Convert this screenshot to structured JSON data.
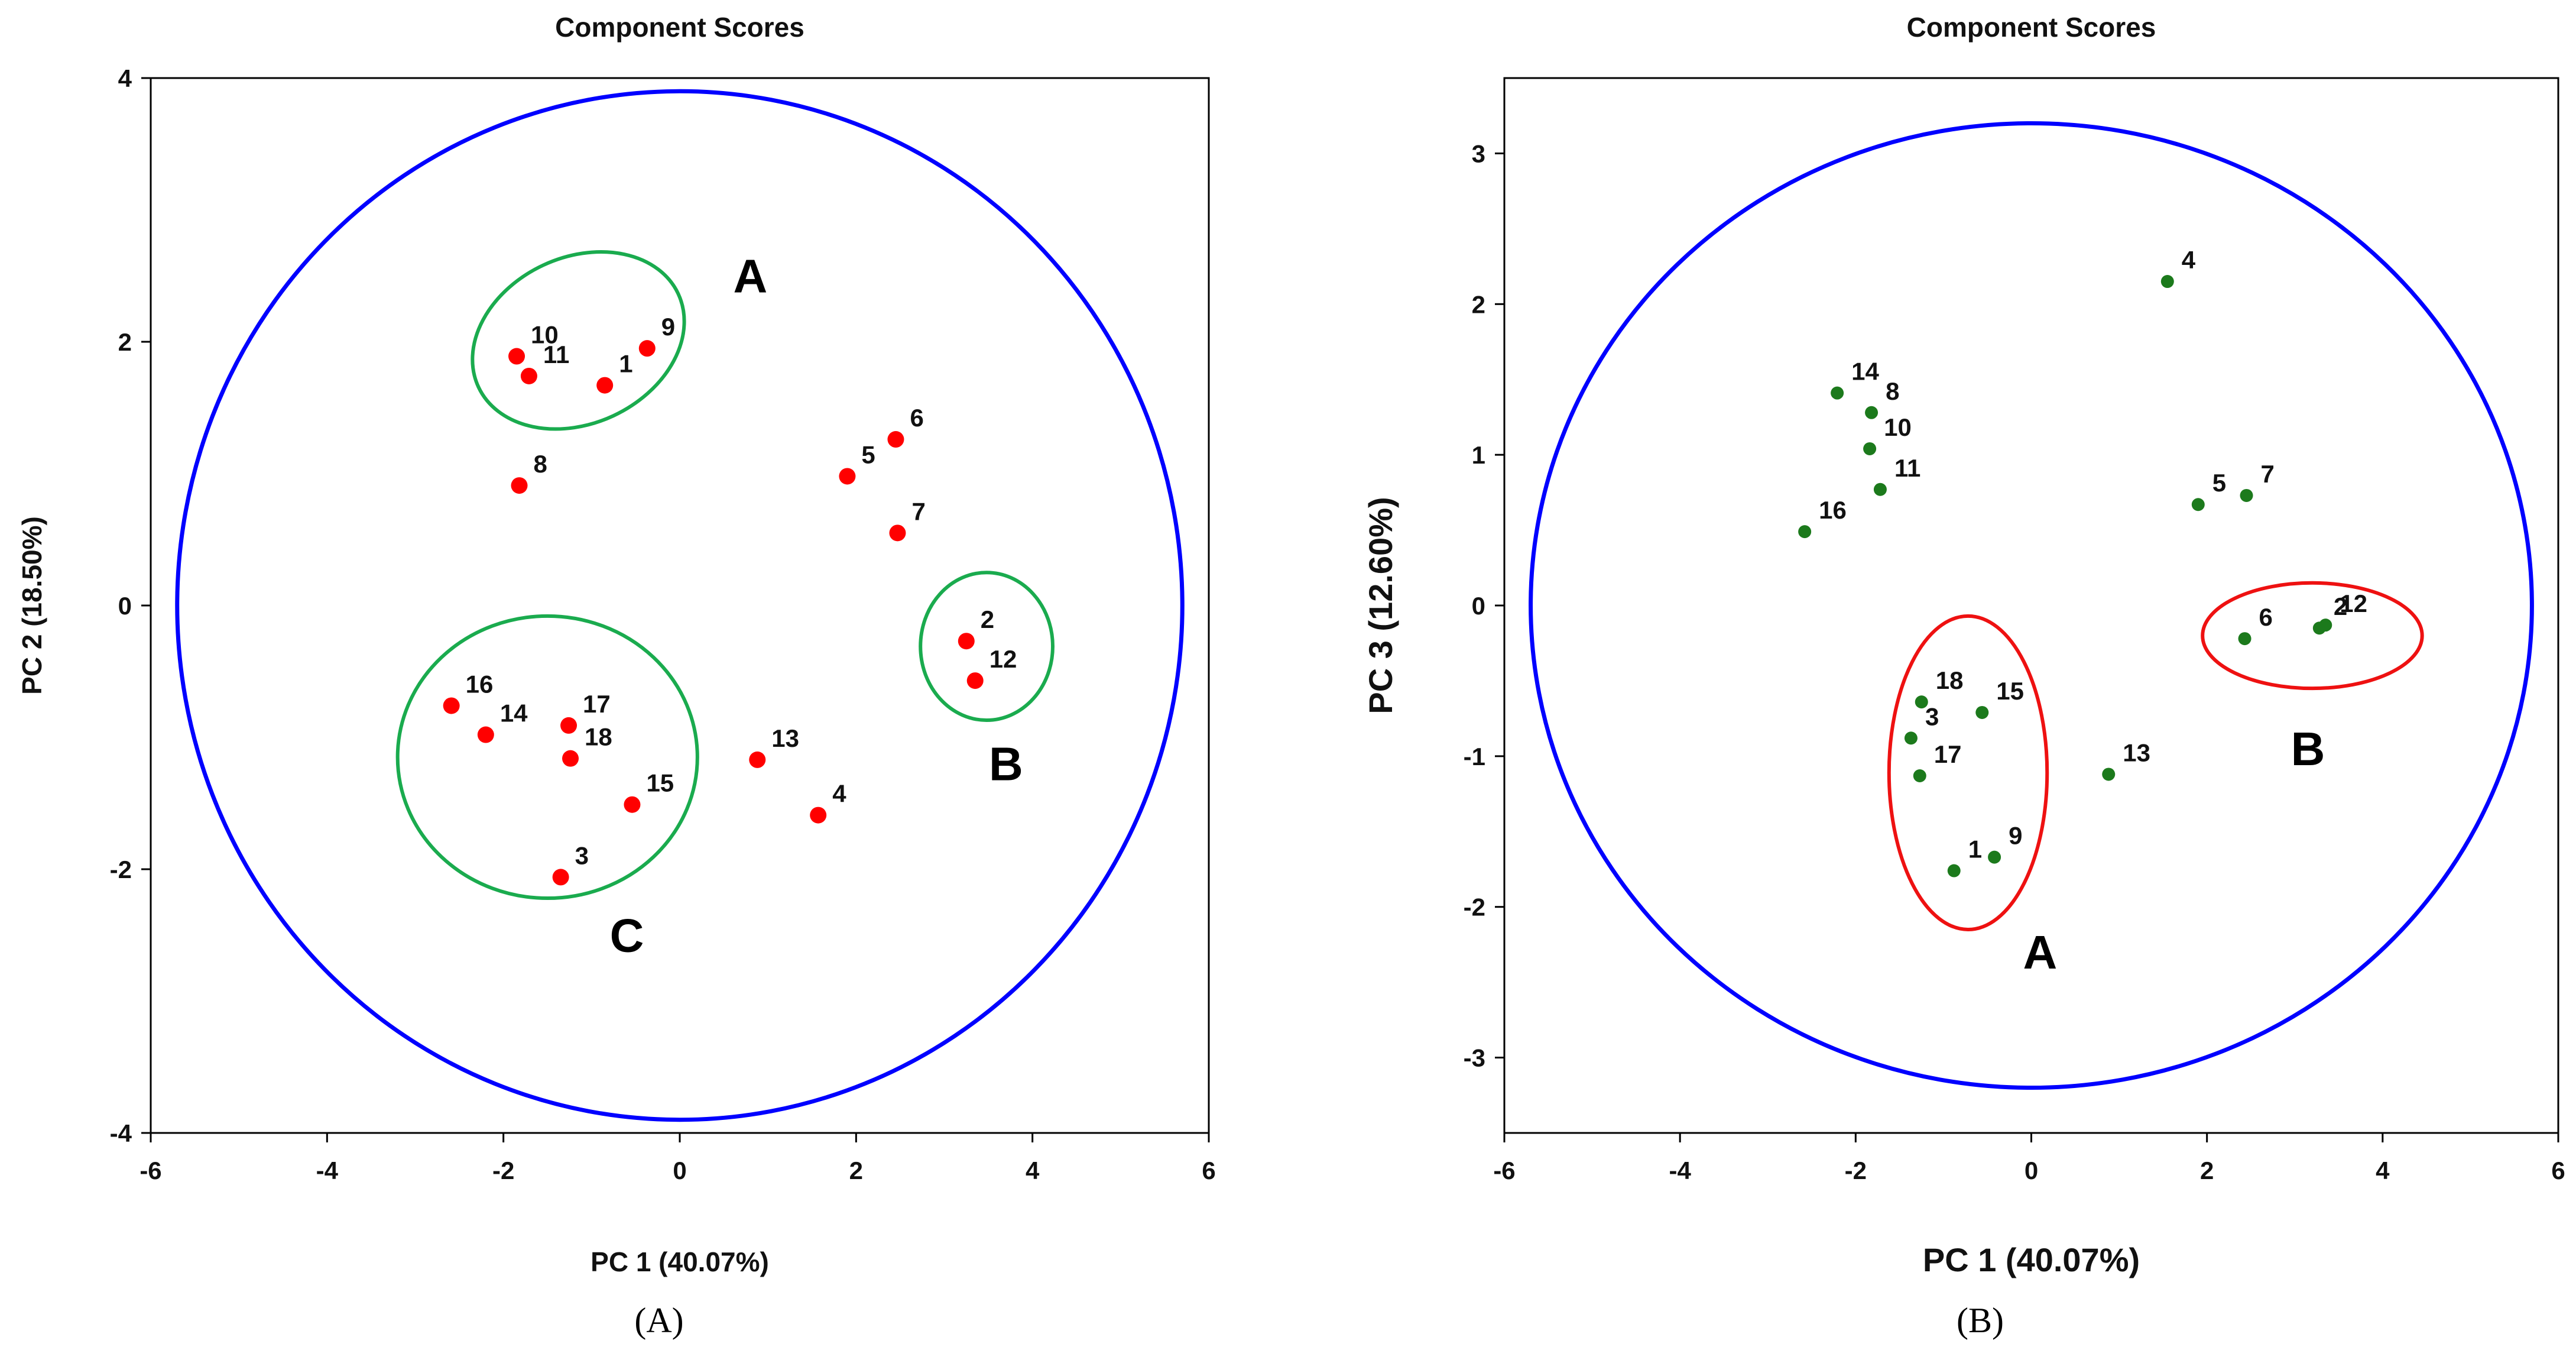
{
  "chart_data": [
    {
      "type": "scatter",
      "panel_label": "A",
      "title": "Component Scores",
      "xlabel": "PC 1 (40.07%)",
      "ylabel": "PC 2 (18.50%)",
      "xlim": [
        -6,
        6
      ],
      "ylim": [
        -4,
        4
      ],
      "xticks": [
        -6,
        -4,
        -2,
        0,
        2,
        4,
        6
      ],
      "yticks": [
        -4,
        -2,
        0,
        2,
        4
      ],
      "point_color": "#ff0000",
      "reference_circle": {
        "cx": 0,
        "cy": 0,
        "rx": 5.7,
        "ry": 3.9,
        "color": "#0000ff"
      },
      "points": [
        {
          "label": "1",
          "x": -0.85,
          "y": 1.67
        },
        {
          "label": "2",
          "x": 3.25,
          "y": -0.27
        },
        {
          "label": "3",
          "x": -1.35,
          "y": -2.06
        },
        {
          "label": "4",
          "x": 1.57,
          "y": -1.59
        },
        {
          "label": "5",
          "x": 1.9,
          "y": 0.98
        },
        {
          "label": "6",
          "x": 2.45,
          "y": 1.26
        },
        {
          "label": "7",
          "x": 2.47,
          "y": 0.55
        },
        {
          "label": "8",
          "x": -1.82,
          "y": 0.91
        },
        {
          "label": "9",
          "x": -0.37,
          "y": 1.95
        },
        {
          "label": "10",
          "x": -1.85,
          "y": 1.89
        },
        {
          "label": "11",
          "x": -1.71,
          "y": 1.74
        },
        {
          "label": "12",
          "x": 3.35,
          "y": -0.57
        },
        {
          "label": "13",
          "x": 0.88,
          "y": -1.17
        },
        {
          "label": "14",
          "x": -2.2,
          "y": -0.98
        },
        {
          "label": "15",
          "x": -0.54,
          "y": -1.51
        },
        {
          "label": "16",
          "x": -2.59,
          "y": -0.76
        },
        {
          "label": "17",
          "x": -1.26,
          "y": -0.91
        },
        {
          "label": "18",
          "x": -1.24,
          "y": -1.16
        }
      ],
      "groups": [
        {
          "name": "A",
          "color": "#1aab4e",
          "cx": -1.15,
          "cy": 2.01,
          "rx": 1.25,
          "ry": 0.63,
          "angle": 25,
          "label_x": 0.8,
          "label_y": 2.5
        },
        {
          "name": "B",
          "color": "#1aab4e",
          "cx": 3.48,
          "cy": -0.31,
          "rx": 0.75,
          "ry": 0.56,
          "angle": 0,
          "label_x": 3.7,
          "label_y": -1.2
        },
        {
          "name": "C",
          "color": "#1aab4e",
          "cx": -1.5,
          "cy": -1.15,
          "rx": 1.7,
          "ry": 1.07,
          "angle": 0,
          "label_x": -0.6,
          "label_y": -2.5
        }
      ]
    },
    {
      "type": "scatter",
      "panel_label": "B",
      "title": "Component Scores",
      "xlabel": "PC 1 (40.07%)",
      "ylabel": "PC 3 (12.60%)",
      "xlim": [
        -6,
        6
      ],
      "ylim": [
        -3.5,
        3.5
      ],
      "xticks": [
        -6,
        -4,
        -2,
        0,
        2,
        4,
        6
      ],
      "yticks": [
        -3,
        -2,
        -1,
        0,
        1,
        2,
        3
      ],
      "point_color": "#1c7a1c",
      "reference_circle": {
        "cx": 0,
        "cy": 0,
        "rx": 5.7,
        "ry": 3.2,
        "color": "#0000ff"
      },
      "points": [
        {
          "label": "1",
          "x": -0.88,
          "y": -1.76
        },
        {
          "label": "2",
          "x": 3.28,
          "y": -0.15
        },
        {
          "label": "3",
          "x": -1.37,
          "y": -0.88
        },
        {
          "label": "4",
          "x": 1.55,
          "y": 2.15
        },
        {
          "label": "5",
          "x": 1.9,
          "y": 0.67
        },
        {
          "label": "6",
          "x": 2.43,
          "y": -0.22
        },
        {
          "label": "7",
          "x": 2.45,
          "y": 0.73
        },
        {
          "label": "8",
          "x": -1.82,
          "y": 1.28
        },
        {
          "label": "9",
          "x": -0.42,
          "y": -1.67
        },
        {
          "label": "10",
          "x": -1.84,
          "y": 1.04
        },
        {
          "label": "11",
          "x": -1.72,
          "y": 0.77
        },
        {
          "label": "12",
          "x": 3.35,
          "y": -0.13
        },
        {
          "label": "13",
          "x": 0.88,
          "y": -1.12
        },
        {
          "label": "14",
          "x": -2.21,
          "y": 1.41
        },
        {
          "label": "15",
          "x": -0.56,
          "y": -0.71
        },
        {
          "label": "16",
          "x": -2.58,
          "y": 0.49
        },
        {
          "label": "17",
          "x": -1.27,
          "y": -1.13
        },
        {
          "label": "18",
          "x": -1.25,
          "y": -0.64
        }
      ],
      "groups": [
        {
          "name": "A",
          "color": "#ee1111",
          "cx": -0.72,
          "cy": -1.11,
          "rx": 0.9,
          "ry": 1.04,
          "angle": 0,
          "label_x": 0.1,
          "label_y": -2.3
        },
        {
          "name": "B",
          "color": "#ee1111",
          "cx": 3.2,
          "cy": -0.2,
          "rx": 1.25,
          "ry": 0.35,
          "angle": 0,
          "label_x": 3.15,
          "label_y": -0.95
        }
      ]
    }
  ],
  "panel_captions": [
    "(A)",
    "(B)"
  ]
}
